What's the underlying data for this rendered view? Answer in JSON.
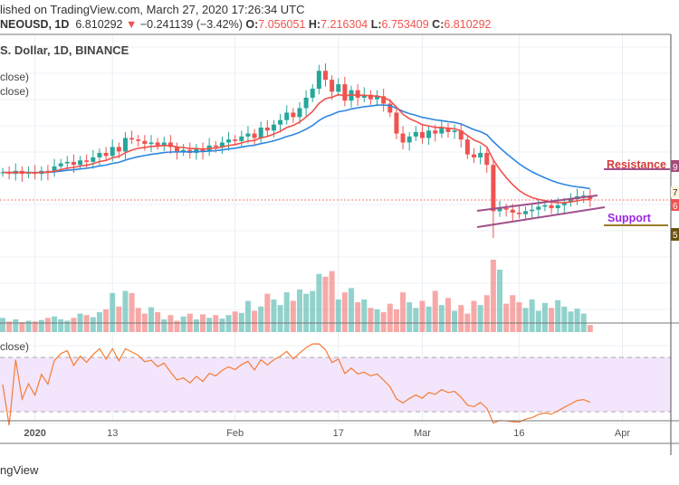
{
  "header": {
    "published": "lished on TradingView.com, March 27, 2020 17:26:34 UTC",
    "symbol": "NEOUSD, 1D",
    "price": "6.810292",
    "arrow": "▼",
    "change": "−0.241139 (−3.42%)",
    "o_label": "O:",
    "o": "7.056051",
    "h_label": "H:",
    "h": "7.216304",
    "l_label": "L:",
    "l": "6.753409",
    "c_label": "C:",
    "c": "6.810292"
  },
  "pane_title": "S. Dollar, 1D, BINANCE",
  "indicators": [
    "close)",
    "close)"
  ],
  "rsi_label": "close)",
  "annotations": {
    "resistance": "Resistance",
    "support": "Support",
    "resistance_tag": "9",
    "support_tag": "5",
    "last_tag": "7",
    "price_tag": "6"
  },
  "footer": "ngView",
  "colors": {
    "up": "#26a69a",
    "down": "#ef5350",
    "ma_fast": "#f0524a",
    "ma_slow": "#2e86de",
    "rsi": "#f57c33",
    "rsi_band": "#f3e5fb"
  },
  "chart_data": {
    "type": "candlestick",
    "start_date": "2019-12-27",
    "interval": "1D",
    "x_ticks": [
      {
        "label": "2020",
        "day": 5
      },
      {
        "label": "13",
        "day": 17
      },
      {
        "label": "Feb",
        "day": 36
      },
      {
        "label": "17",
        "day": 52
      },
      {
        "label": "Mar",
        "day": 65
      },
      {
        "label": "16",
        "day": 80
      },
      {
        "label": "Apr",
        "day": 96
      }
    ],
    "closes": [
      8.6,
      8.5,
      8.7,
      8.5,
      8.6,
      8.5,
      8.7,
      8.6,
      9.0,
      9.2,
      9.3,
      9.1,
      9.4,
      9.3,
      9.6,
      9.9,
      9.7,
      10.3,
      10.0,
      10.9,
      10.8,
      10.7,
      10.5,
      10.6,
      10.4,
      10.6,
      10.3,
      10.0,
      10.1,
      9.9,
      10.2,
      10.0,
      10.4,
      10.3,
      10.6,
      10.8,
      10.7,
      11.0,
      11.2,
      10.9,
      11.6,
      11.4,
      11.8,
      12.1,
      12.6,
      12.3,
      12.9,
      13.6,
      14.2,
      15.4,
      14.8,
      14.0,
      14.5,
      13.4,
      14.1,
      13.6,
      13.8,
      13.5,
      13.7,
      13.2,
      12.6,
      11.2,
      10.6,
      11.0,
      11.3,
      10.9,
      11.4,
      11.2,
      11.6,
      11.3,
      11.4,
      10.8,
      9.8,
      9.6,
      9.9,
      9.1,
      6.0,
      6.2,
      6.1,
      5.9,
      5.8,
      6.0,
      6.1,
      6.3,
      6.4,
      6.2,
      6.4,
      6.6,
      6.8,
      7.0,
      7.05,
      6.81
    ],
    "volumes": [
      2,
      1.5,
      1.8,
      1.4,
      1.6,
      1.5,
      1.7,
      2,
      2.2,
      1.8,
      1.6,
      2,
      2.6,
      2.4,
      2.1,
      2.8,
      3.2,
      5.5,
      3.6,
      5.8,
      5.5,
      3.4,
      2.6,
      3.5,
      2.8,
      1.8,
      2.4,
      1.6,
      2.2,
      2.6,
      1.8,
      2.5,
      2,
      2.4,
      1.9,
      2.4,
      2.9,
      2.7,
      4.4,
      3,
      3.6,
      5.4,
      4.6,
      3.8,
      5.6,
      4.4,
      6,
      5.4,
      5.8,
      8.2,
      7.8,
      8.6,
      4.6,
      5.6,
      6.2,
      4.2,
      4.6,
      3.4,
      3.2,
      2.8,
      4,
      3.2,
      5.6,
      4.2,
      3.4,
      4.4,
      3.6,
      5.8,
      3.8,
      4.8,
      3,
      3.8,
      2.6,
      4.4,
      3.8,
      5.2,
      10.2,
      8.8,
      4,
      5.2,
      4.2,
      3.4,
      4.6,
      3,
      4.1,
      3.4,
      4.5,
      3.6,
      2.9,
      3.3,
      2.6,
      1
    ],
    "ma_fast_period": 9,
    "ma_slow_period": 21,
    "rsi_period": 14,
    "rsi_levels": [
      70,
      30
    ],
    "trendlines": {
      "resistance_price": 9,
      "support_price": 5
    }
  }
}
